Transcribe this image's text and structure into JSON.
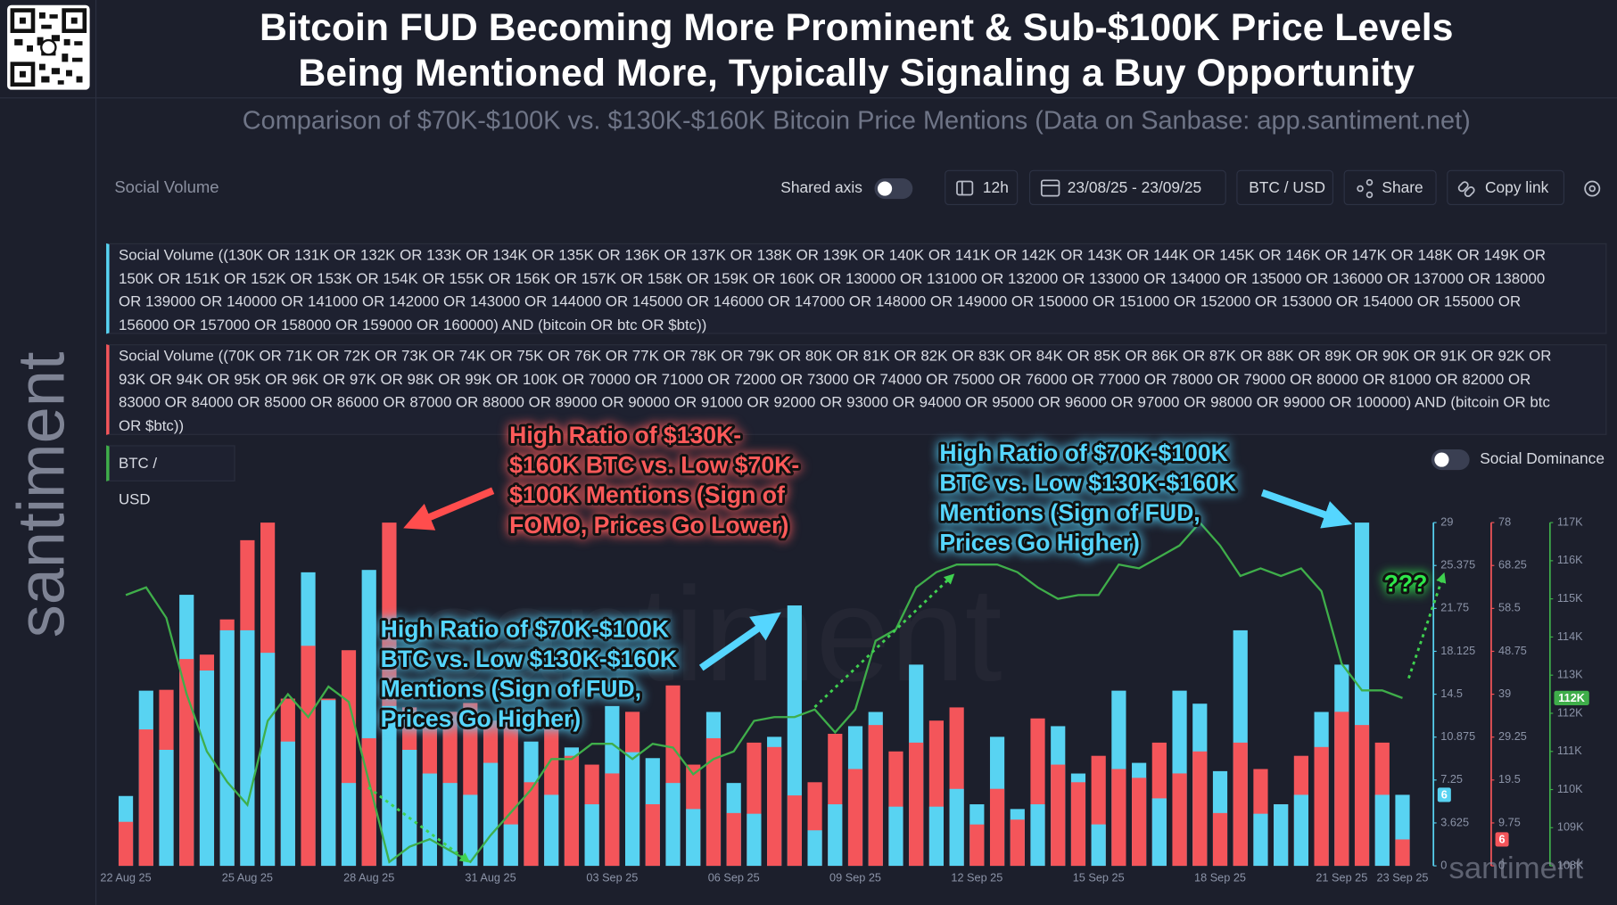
{
  "header": {
    "title_lines": [
      "Bitcoin FUD Becoming More Prominent & Sub-$100K Price Levels",
      "Being Mentioned More, Typically Signaling a Buy Opportunity"
    ],
    "subtitle": "Comparison of $70K-$100K vs. $130K-$160K Bitcoin Price Mentions (Data on Sanbase: app.santiment.net)"
  },
  "brand": "santiment",
  "toolbar": {
    "metric": "Social Volume",
    "shared_axis": "Shared axis",
    "interval": "12h",
    "date_range": "23/08/25 - 23/09/25",
    "pair": "BTC / USD",
    "share": "Share",
    "copy_link": "Copy link"
  },
  "social_dominance": "Social Dominance",
  "chart_data": {
    "type": "bar",
    "categories": [
      "22 Aug 25",
      null,
      null,
      null,
      null,
      null,
      "25 Aug 25",
      null,
      null,
      null,
      null,
      null,
      "28 Aug 25",
      null,
      null,
      null,
      null,
      null,
      "31 Aug 25",
      null,
      null,
      null,
      null,
      null,
      "03 Sep 25",
      null,
      null,
      null,
      null,
      null,
      "06 Sep 25",
      null,
      null,
      null,
      null,
      null,
      "09 Sep 25",
      null,
      null,
      null,
      null,
      null,
      "12 Sep 25",
      null,
      null,
      null,
      null,
      null,
      "15 Sep 25",
      null,
      null,
      null,
      null,
      null,
      "18 Sep 25",
      null,
      null,
      null,
      null,
      null,
      "21 Sep 25",
      null,
      null,
      "23 Sep 25"
    ],
    "series": [
      {
        "name": "Social Volume ((130K OR 131K OR 132K OR 133K OR 134K OR 135K OR 136K OR 137K OR 138K OR 139K OR 140K OR 141K OR 142K OR 143K OR 144K OR 145K OR 146K OR 147K OR 148K OR 149K OR 150K OR 151K OR 152K OR 153K OR 154K OR 155K OR 156K OR 157K OR 158K OR 159K OR 160K OR 130000 OR 131000 OR 132000 OR 133000 OR 134000 OR 135000 OR 136000 OR 137000 OR 138000 OR 139000 OR 140000 OR 141000 OR 142000 OR 143000 OR 144000 OR 145000 OR 146000 OR 147000 OR 148000 OR 149000 OR 150000 OR 151000 OR 152000 OR 153000 OR 154000 OR 155000 OR 156000 OR 157000 OR 158000 OR 159000 OR 160000) AND (bitcoin OR btc OR $btc))",
        "color": "#58d3f2",
        "type": "bar",
        "axis": "y",
        "last_value_label": "6",
        "values": [
          5.9,
          14.8,
          9.8,
          22.9,
          16.5,
          19.9,
          19.9,
          18,
          10.5,
          24.8,
          14,
          7,
          25,
          13.5,
          9.8,
          7.8,
          7,
          6,
          8.7,
          3.5,
          10.5,
          6,
          10,
          5.2,
          13.5,
          9.6,
          9.1,
          7,
          4.8,
          13,
          7,
          4.4,
          10.9,
          22,
          3,
          5.2,
          11.8,
          13,
          5,
          17,
          5,
          6.5,
          5.2,
          10.9,
          4.8,
          5.2,
          11.8,
          7.8,
          3.5,
          14.8,
          8.7,
          5.7,
          14.8,
          13.7,
          8,
          19.9,
          4.4,
          5.2,
          6,
          13,
          17,
          29,
          6,
          6
        ]
      },
      {
        "name": "Social Volume ((70K OR 71K OR 72K OR 73K OR 74K OR 75K OR 76K OR 77K OR 78K OR 79K OR 80K OR 81K OR 82K OR 83K OR 84K OR 85K OR 86K OR 87K OR 88K OR 89K OR 90K OR 91K OR 92K OR 93K OR 94K OR 95K OR 96K OR 97K OR 98K OR 99K OR 100K OR 70000 OR 71000 OR 72000 OR 73000 OR 74000 OR 75000 OR 76000 OR 77000 OR 78000 OR 79000 OR 80000 OR 81000 OR 82000 OR 83000 OR 84000 OR 85000 OR 86000 OR 87000 OR 88000 OR 89000 OR 90000 OR 91000 OR 92000 OR 93000 OR 94000 OR 95000 OR 96000 OR 97000 OR 98000 OR 99000 OR 100000) AND (bitcoin OR btc OR $btc))",
        "color": "#f4555a",
        "type": "bar",
        "axis": "y2",
        "last_value_label": "6",
        "values": [
          10,
          31,
          40,
          47,
          48,
          56,
          74,
          78,
          38,
          50,
          38,
          49,
          29,
          78,
          36,
          33,
          35,
          37,
          33,
          33,
          19,
          33,
          25,
          23,
          21,
          35,
          14,
          41,
          23,
          29,
          12,
          28,
          27,
          16,
          19,
          30,
          22,
          32,
          26,
          28,
          33,
          36,
          9.4,
          17.5,
          10.5,
          33.5,
          23,
          19,
          25,
          22,
          20,
          28,
          21,
          26,
          12,
          28,
          22,
          14,
          25,
          27,
          35,
          32,
          28,
          6
        ]
      },
      {
        "name": "BTC / USD",
        "color": "#3fae4a",
        "type": "line",
        "axis": "y3",
        "last_value_label": "112K",
        "values": [
          115100,
          115300,
          114500,
          112500,
          111000,
          110200,
          109600,
          111800,
          112500,
          111900,
          112700,
          112300,
          110200,
          108100,
          108500,
          108700,
          108400,
          108100,
          108800,
          109400,
          110000,
          110800,
          110800,
          111200,
          111200,
          110800,
          111200,
          111100,
          110400,
          110800,
          111000,
          111800,
          111900,
          111900,
          112100,
          111500,
          112100,
          113900,
          114200,
          115300,
          115700,
          115900,
          115900,
          115900,
          115700,
          115300,
          115000,
          115100,
          115100,
          115900,
          115800,
          116100,
          116400,
          117000,
          116400,
          115600,
          115800,
          115600,
          115800,
          115200,
          113300,
          112600,
          112600,
          112400
        ]
      }
    ],
    "ylim": [
      0,
      29
    ],
    "yticks": [
      0,
      3.625,
      7.25,
      10.875,
      14.5,
      18.125,
      21.75,
      25.375,
      29
    ],
    "y2lim": [
      0,
      78
    ],
    "y2ticks": [
      0,
      9.75,
      19.5,
      29.25,
      39,
      48.75,
      58.5,
      68.25,
      78
    ],
    "y3lim": [
      108000,
      117000
    ],
    "y3ticks": [
      {
        "value": 108000,
        "label": "108K"
      },
      {
        "value": 109000,
        "label": "109K"
      },
      {
        "value": 110000,
        "label": "110K"
      },
      {
        "value": 111000,
        "label": "111K"
      },
      {
        "value": 112000,
        "label": "112K"
      },
      {
        "value": 113000,
        "label": "113K"
      },
      {
        "value": 114000,
        "label": "114K"
      },
      {
        "value": 115000,
        "label": "115K"
      },
      {
        "value": 116000,
        "label": "116K"
      },
      {
        "value": 117000,
        "label": "117K"
      }
    ],
    "annotations": [
      {
        "lines": [
          "High Ratio of $130K-",
          "$160K BTC vs. Low $70K-",
          "$100K Mentions (Sign of",
          "FOMO, Prices Go Lower)"
        ],
        "color": "#ff5a5a"
      },
      {
        "lines": [
          "High Ratio of $70K-$100K",
          "BTC vs. Low $130K-$160K",
          "Mentions (Sign of FUD,",
          "Prices Go Higher)"
        ],
        "color": "#55d6ff"
      },
      {
        "lines": [
          "High Ratio of $70K-$100K",
          "BTC vs. Low $130K-$160K",
          "Mentions (Sign of FUD,",
          "Prices Go Higher)"
        ],
        "color": "#55d6ff"
      },
      {
        "lines": [
          "???"
        ],
        "color": "#2ee84a"
      }
    ]
  }
}
